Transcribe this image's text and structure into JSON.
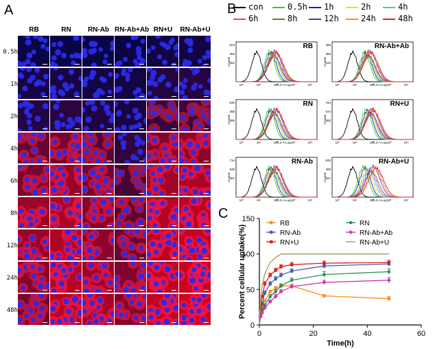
{
  "panel_a": {
    "letter": "A",
    "columns": [
      "RB",
      "RN",
      "RN-Ab",
      "RN-Ab+Ab",
      "RN+U",
      "RN-Ab+U"
    ],
    "rows": [
      "0.5h",
      "1h",
      "2h",
      "4h",
      "6h",
      "8h",
      "12h",
      "24h",
      "48h"
    ],
    "red_intensity": [
      [
        0.0,
        0.0,
        0.0,
        0.0,
        0.04,
        0.04
      ],
      [
        0.06,
        0.08,
        0.05,
        0.05,
        0.12,
        0.14
      ],
      [
        0.12,
        0.16,
        0.1,
        0.08,
        0.22,
        0.26
      ],
      [
        0.45,
        0.55,
        0.38,
        0.2,
        0.6,
        0.66
      ],
      [
        0.55,
        0.7,
        0.52,
        0.3,
        0.75,
        0.8
      ],
      [
        0.72,
        0.8,
        0.62,
        0.4,
        0.85,
        0.88
      ],
      [
        0.7,
        0.82,
        0.65,
        0.48,
        0.88,
        0.92
      ],
      [
        0.62,
        0.85,
        0.72,
        0.58,
        0.9,
        0.95
      ],
      [
        0.52,
        0.86,
        0.78,
        0.62,
        0.92,
        0.97
      ]
    ]
  },
  "panel_b": {
    "letter": "B",
    "legend": [
      {
        "label": "con",
        "color": "#000000"
      },
      {
        "label": "0.5h",
        "color": "#33cc33"
      },
      {
        "label": "1h",
        "color": "#1a1acc"
      },
      {
        "label": "2h",
        "color": "#e6e600"
      },
      {
        "label": "4h",
        "color": "#33cccc"
      },
      {
        "label": "6h",
        "color": "#e633cc"
      },
      {
        "label": "8h",
        "color": "#806633"
      },
      {
        "label": "12h",
        "color": "#4d33cc"
      },
      {
        "label": "24h",
        "color": "#ff8c1a"
      },
      {
        "label": "48h",
        "color": "#e61a1a"
      }
    ],
    "histograms": [
      {
        "label": "RB",
        "y_max": "524",
        "y_mid": "393",
        "y_low": "262"
      },
      {
        "label": "RN-Ab+Ab",
        "y_max": "486",
        "y_mid": "365",
        "y_low": "243"
      },
      {
        "label": "RN",
        "y_max": "530",
        "y_mid": "398",
        "y_low": "265"
      },
      {
        "label": "RN+U",
        "y_max": "764",
        "y_mid": "573",
        "y_low": "382"
      },
      {
        "label": "RN-Ab",
        "y_max": "714",
        "y_mid": "536",
        "y_low": "357"
      },
      {
        "label": "RN-Ab+U",
        "y_max": "533",
        "y_mid": "400",
        "y_low": "267"
      }
    ],
    "x_axis_label": "FL2-A-Log",
    "y_axis_label": "Counts",
    "x_ticks": [
      "10°",
      "10¹",
      "10²",
      "10³",
      "10⁴"
    ]
  },
  "panel_c": {
    "letter": "C"
  },
  "chart_data": {
    "type": "line",
    "title": "",
    "xlabel": "Time(h)",
    "ylabel": "Percent cellular uptake(%)",
    "xlim": [
      0,
      60
    ],
    "ylim": [
      0,
      150
    ],
    "xticks": [
      0,
      20,
      40,
      60
    ],
    "yticks": [
      0,
      50,
      100,
      150
    ],
    "x": [
      0.5,
      1,
      2,
      4,
      6,
      8,
      12,
      24,
      48
    ],
    "series": [
      {
        "name": "RB",
        "color": "#ff8c1a",
        "marker": "square",
        "values": [
          18,
          27,
          34,
          47,
          52,
          55,
          55,
          41,
          37
        ],
        "err": [
          2,
          2,
          2,
          2,
          2,
          2,
          2,
          2,
          3
        ]
      },
      {
        "name": "RN",
        "color": "#2e8b57",
        "marker": "circle",
        "values": [
          16,
          22,
          28,
          40,
          47,
          55,
          63,
          71,
          75
        ],
        "err": [
          2,
          2,
          2,
          3,
          3,
          3,
          3,
          4,
          4
        ]
      },
      {
        "name": "RN-Ab",
        "color": "#4060b0",
        "marker": "square",
        "values": [
          20,
          30,
          45,
          58,
          65,
          70,
          76,
          83,
          86
        ],
        "err": [
          2,
          2,
          3,
          3,
          3,
          3,
          3,
          3,
          3
        ]
      },
      {
        "name": "RN-Ab+Ab",
        "color": "#cc33aa",
        "marker": "diamond",
        "values": [
          12,
          17,
          24,
          33,
          40,
          47,
          54,
          60,
          63
        ],
        "err": [
          2,
          2,
          2,
          2,
          3,
          3,
          3,
          3,
          4
        ]
      },
      {
        "name": "RN+U",
        "color": "#e61a1a",
        "marker": "square",
        "values": [
          28,
          40,
          58,
          70,
          77,
          82,
          85,
          87,
          88
        ],
        "err": [
          2,
          2,
          3,
          3,
          3,
          3,
          3,
          3,
          3
        ]
      },
      {
        "name": "RN-Ab+U",
        "color": "#a09a55",
        "marker": "none",
        "values": [
          38,
          55,
          72,
          88,
          95,
          100,
          100,
          100,
          100
        ],
        "err": [
          0,
          0,
          0,
          0,
          0,
          0,
          0,
          0,
          0
        ]
      }
    ]
  }
}
